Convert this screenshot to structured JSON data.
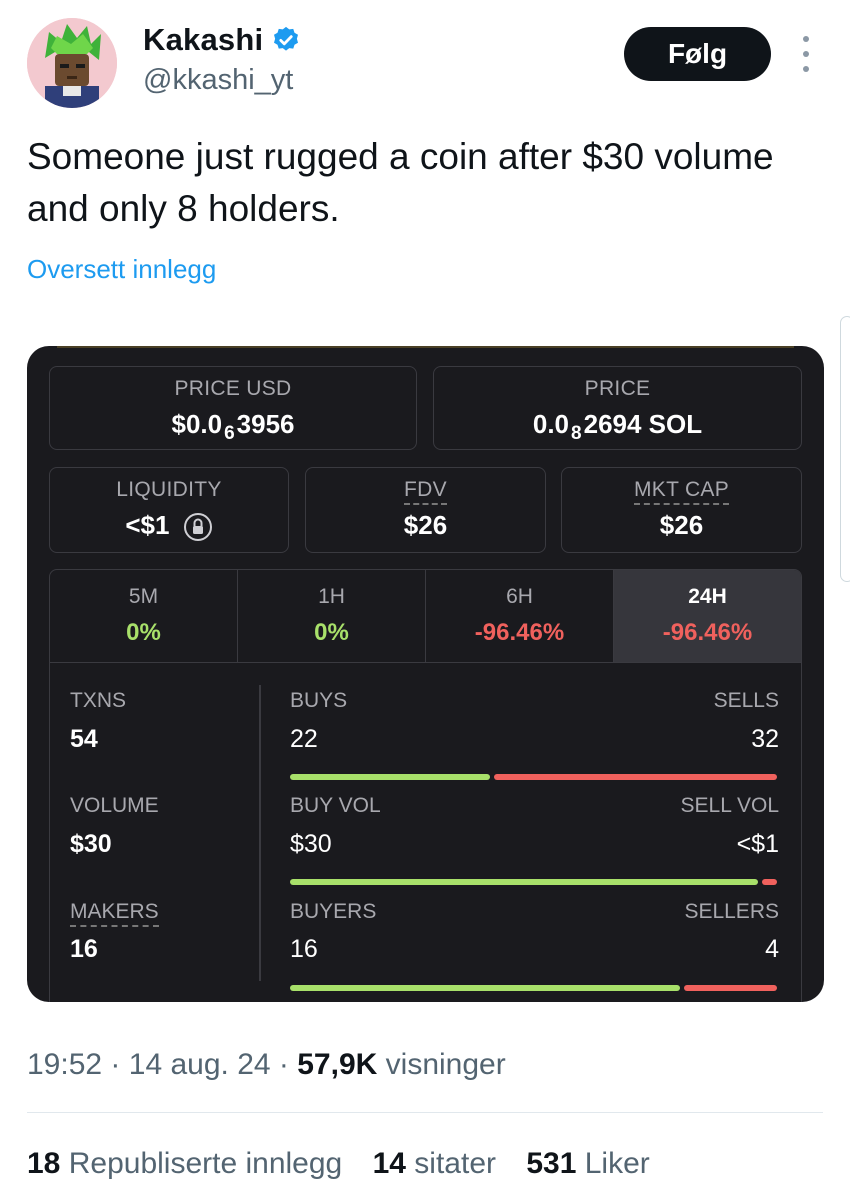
{
  "author": {
    "display_name": "Kakashi",
    "handle": "@kkashi_yt",
    "verified_icon": "verified-badge-icon",
    "accent_color": "#1d9bf0"
  },
  "actions": {
    "follow_label": "Følg",
    "more_icon": "more-vertical-icon"
  },
  "tweet": {
    "text": "Someone just rugged a coin after $30 volume and only 8 holders.",
    "translate_label": "Oversett innlegg"
  },
  "card": {
    "price_usd": {
      "label": "PRICE USD",
      "prefix": "$0.0",
      "subscript": "6",
      "suffix": "3956"
    },
    "price": {
      "label": "PRICE",
      "prefix": "0.0",
      "subscript": "8",
      "suffix": "2694 SOL"
    },
    "liquidity": {
      "label": "LIQUIDITY",
      "value": "<$1",
      "icon": "lock-icon"
    },
    "fdv": {
      "label": "FDV",
      "value": "$26"
    },
    "mkt_cap": {
      "label": "MKT CAP",
      "value": "$26"
    },
    "timeframes": [
      {
        "label": "5M",
        "value": "0%",
        "color": "#a8e06a"
      },
      {
        "label": "1H",
        "value": "0%",
        "color": "#a8e06a"
      },
      {
        "label": "6H",
        "value": "-96.46%",
        "color": "#f0615d"
      },
      {
        "label": "24H",
        "value": "-96.46%",
        "color": "#f0615d",
        "active": true
      }
    ],
    "txns": {
      "label": "TXNS",
      "value": "54"
    },
    "volume": {
      "label": "VOLUME",
      "value": "$30"
    },
    "makers": {
      "label": "MAKERS",
      "value": "16"
    },
    "buys": {
      "label": "BUYS",
      "value": "22",
      "sells_label": "SELLS",
      "sells_value": "32",
      "buy_share": 0.41
    },
    "buy_vol": {
      "label": "BUY VOL",
      "value": "$30",
      "sells_label": "SELL VOL",
      "sells_value": "<$1",
      "buy_share": 0.96
    },
    "buyers": {
      "label": "BUYERS",
      "value": "16",
      "sells_label": "SELLERS",
      "sells_value": "4",
      "buy_share": 0.8
    }
  },
  "meta": {
    "time": "19:52",
    "date": "14 aug. 24",
    "views_count": "57,9K",
    "views_label": "visninger"
  },
  "engagement": {
    "reposts_count": "18",
    "reposts_label": "Republiserte innlegg",
    "quotes_count": "14",
    "quotes_label": "sitater",
    "likes_count": "531",
    "likes_label": "Liker"
  }
}
